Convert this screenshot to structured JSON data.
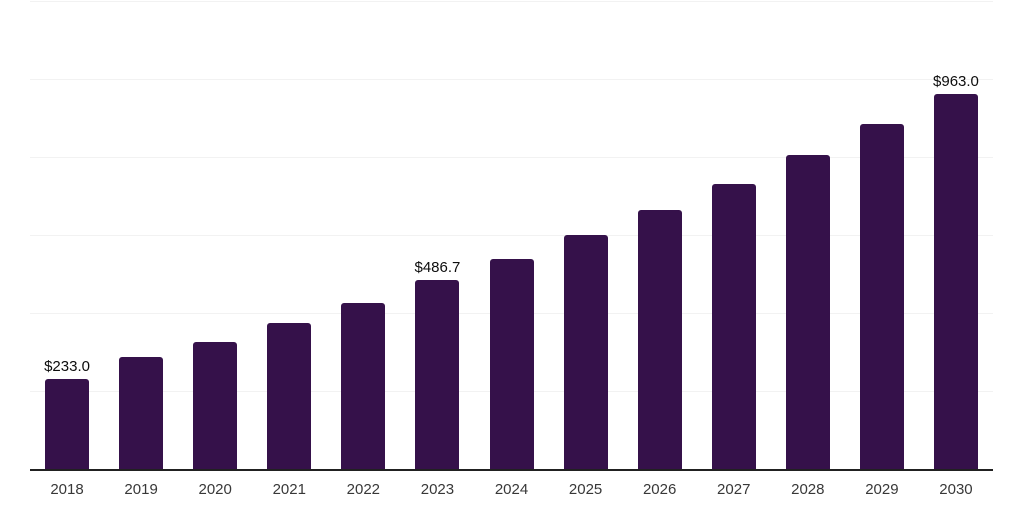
{
  "chart_data": {
    "type": "bar",
    "title": "",
    "xlabel": "",
    "ylabel": "",
    "categories": [
      "2018",
      "2019",
      "2020",
      "2021",
      "2022",
      "2023",
      "2024",
      "2025",
      "2026",
      "2027",
      "2028",
      "2029",
      "2030"
    ],
    "values": [
      233.0,
      291,
      327,
      378,
      429,
      486.7,
      542,
      603,
      667,
      734,
      808,
      887,
      963.0
    ],
    "data_labels": {
      "0": "$233.0",
      "5": "$486.7",
      "12": "$963.0"
    },
    "ylim": [
      0,
      1200
    ],
    "gridline_step": 200,
    "grid": "horizontal",
    "legend": "none",
    "colors": {
      "bar": "#35114a",
      "gridline": "#f2f2f2",
      "axis_line": "#212121",
      "data_label": "#0d0d0d",
      "tick_label": "#383838",
      "background": "#ffffff"
    }
  }
}
